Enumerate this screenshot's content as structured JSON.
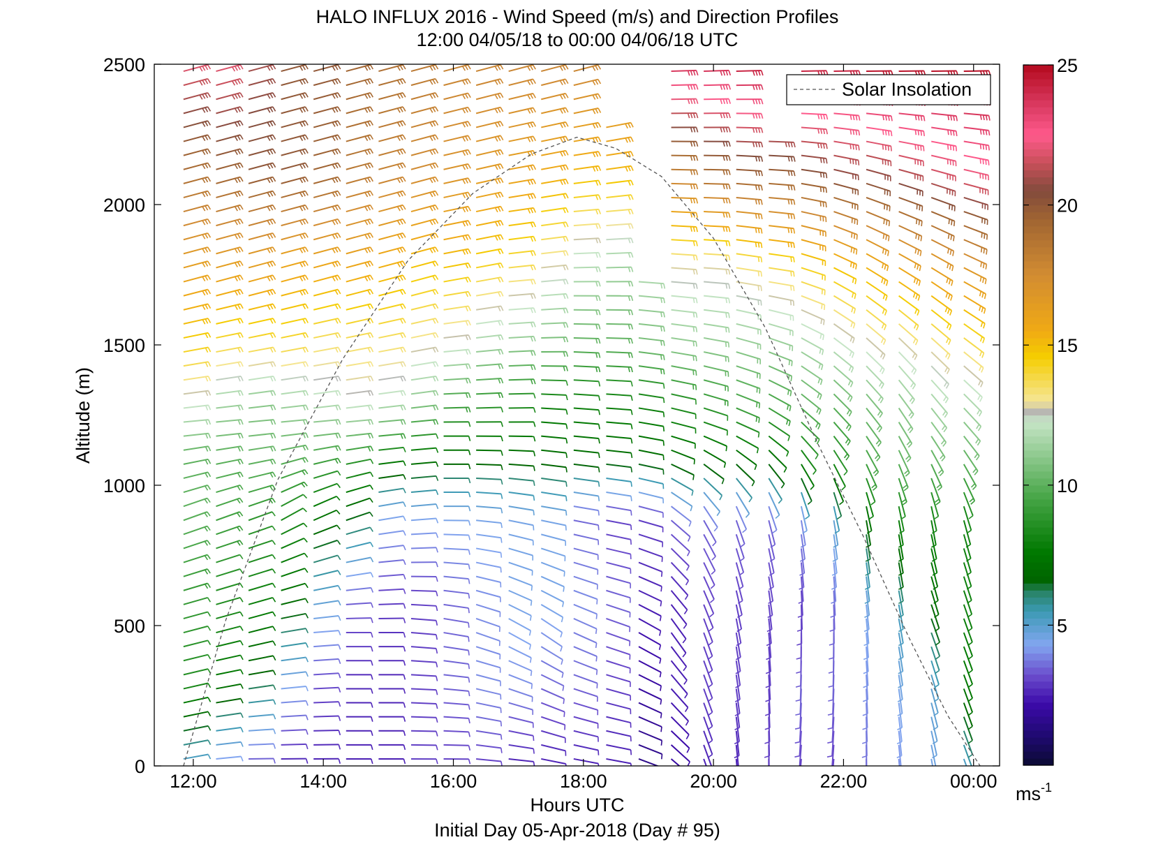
{
  "chart_data": {
    "type": "wind_barb_profile",
    "title": "HALO INFLUX 2016 - Wind Speed (m/s) and Direction Profiles",
    "subtitle": "12:00 04/05/18 to 00:00 04/06/18  UTC",
    "xlabel": "Hours UTC",
    "ylabel": "Altitude (m)",
    "footer": "Initial Day 05-Apr-2018 (Day # 95)",
    "xlim": [
      11.4,
      24.4
    ],
    "ylim": [
      0,
      2500
    ],
    "x_ticks": [
      {
        "value": 12,
        "label": "12:00"
      },
      {
        "value": 14,
        "label": "14:00"
      },
      {
        "value": 16,
        "label": "16:00"
      },
      {
        "value": 18,
        "label": "18:00"
      },
      {
        "value": 20,
        "label": "20:00"
      },
      {
        "value": 22,
        "label": "22:00"
      },
      {
        "value": 24,
        "label": "00:00"
      }
    ],
    "y_ticks": [
      {
        "value": 0,
        "label": "0"
      },
      {
        "value": 500,
        "label": "500"
      },
      {
        "value": 1000,
        "label": "1000"
      },
      {
        "value": 1500,
        "label": "1500"
      },
      {
        "value": 2000,
        "label": "2000"
      },
      {
        "value": 2500,
        "label": "2500"
      }
    ],
    "legend": {
      "entries": [
        {
          "label": "Solar Insolation",
          "style": "dashed"
        }
      ],
      "placement": "top-right"
    },
    "solar_insolation": {
      "x": [
        11.85,
        12.5,
        13.3,
        14.3,
        15.3,
        16.3,
        17.2,
        17.9,
        18.5,
        19.2,
        20.0,
        20.8,
        21.6,
        22.3,
        23.0,
        23.6,
        24.1
      ],
      "y": [
        0,
        520,
        1020,
        1450,
        1800,
        2040,
        2180,
        2240,
        2200,
        2100,
        1880,
        1560,
        1150,
        820,
        460,
        180,
        0
      ]
    },
    "colorbar": {
      "label": "ms",
      "label_exponent": "-1",
      "range": [
        0,
        25
      ],
      "ticks": [
        {
          "value": 5,
          "label": "5"
        },
        {
          "value": 10,
          "label": "10"
        },
        {
          "value": 15,
          "label": "15"
        },
        {
          "value": 20,
          "label": "20"
        },
        {
          "value": 25,
          "label": "25"
        }
      ],
      "stops": [
        {
          "value": 0,
          "color": "#0a0a32"
        },
        {
          "value": 1,
          "color": "#1e0a6e"
        },
        {
          "value": 2.2,
          "color": "#3c0aaa"
        },
        {
          "value": 3.2,
          "color": "#6a4ccc"
        },
        {
          "value": 4.3,
          "color": "#82a6f0"
        },
        {
          "value": 5.5,
          "color": "#3c9ab4"
        },
        {
          "value": 6.2,
          "color": "#288264"
        },
        {
          "value": 6.6,
          "color": "#006400"
        },
        {
          "value": 7.6,
          "color": "#007800"
        },
        {
          "value": 9.5,
          "color": "#44a444"
        },
        {
          "value": 11,
          "color": "#8cc88c"
        },
        {
          "value": 12.3,
          "color": "#c8e6c8"
        },
        {
          "value": 12.6,
          "color": "#b4b4b4"
        },
        {
          "value": 13.0,
          "color": "#f5e696"
        },
        {
          "value": 14.6,
          "color": "#f5cd00"
        },
        {
          "value": 15.5,
          "color": "#f0aa14"
        },
        {
          "value": 17.5,
          "color": "#d28c32"
        },
        {
          "value": 19.5,
          "color": "#a06432"
        },
        {
          "value": 20.5,
          "color": "#824b3c"
        },
        {
          "value": 21.5,
          "color": "#c8505a"
        },
        {
          "value": 22.5,
          "color": "#ff5a8c"
        },
        {
          "value": 23.5,
          "color": "#dc3c64"
        },
        {
          "value": 25,
          "color": "#b40a1e"
        }
      ]
    },
    "profiles": {
      "times_utc": [
        11.85,
        12.35,
        12.85,
        13.35,
        13.85,
        14.35,
        14.85,
        15.35,
        15.85,
        16.35,
        16.85,
        17.35,
        17.85,
        18.35,
        18.85,
        19.35,
        19.85,
        20.35,
        20.85,
        21.35,
        21.85,
        22.35,
        22.85,
        23.35,
        23.85
      ],
      "speed_profile_nodes": [
        {
          "alt": 0,
          "speeds": [
            5,
            4,
            3.2,
            2.5,
            2.5,
            2.5,
            2.5,
            3,
            3,
            3,
            2.5,
            2.5,
            2.5,
            2.5,
            1.5,
            2,
            2.5,
            2.5,
            3,
            3,
            3,
            3.5,
            4,
            4.5,
            5
          ]
        },
        {
          "alt": 300,
          "speeds": [
            8.5,
            7.5,
            6.5,
            4.5,
            3.2,
            2.6,
            2.6,
            3,
            3.5,
            4,
            4,
            3.5,
            3.5,
            3,
            2,
            2.5,
            3,
            3,
            3,
            3.5,
            3.5,
            4,
            4.5,
            5,
            7.5
          ]
        },
        {
          "alt": 600,
          "speeds": [
            9,
            8.5,
            8,
            7.2,
            5,
            3.5,
            3,
            3,
            3.5,
            4,
            4.5,
            4.5,
            4,
            3.5,
            2.5,
            2.5,
            3,
            3,
            3,
            3,
            3.5,
            4.5,
            5.5,
            7,
            8
          ]
        },
        {
          "alt": 900,
          "speeds": [
            10,
            9.5,
            9,
            8.5,
            7.5,
            6.8,
            4.5,
            4.5,
            4.5,
            4.5,
            4.5,
            4.5,
            3.5,
            3,
            3,
            3.5,
            3.5,
            3.5,
            3.5,
            4,
            5,
            7,
            8,
            8,
            8
          ]
        },
        {
          "alt": 1100,
          "speeds": [
            10,
            10,
            10.2,
            10,
            9.5,
            9,
            8,
            7.5,
            7,
            7,
            7,
            7,
            7,
            7,
            7,
            7,
            7,
            7,
            7,
            8,
            8.5,
            9.5,
            10,
            10,
            10
          ]
        },
        {
          "alt": 1300,
          "speeds": [
            12.5,
            11.5,
            11,
            11.5,
            12,
            12.5,
            12,
            11,
            9.5,
            9,
            8.5,
            8,
            8,
            8,
            8,
            8.5,
            9,
            9.5,
            9.5,
            10,
            10,
            10.5,
            11,
            11.5,
            11.5
          ]
        },
        {
          "alt": 1500,
          "speeds": [
            14.5,
            14,
            14,
            14,
            13.5,
            13.5,
            13.5,
            13,
            12.5,
            11.5,
            11,
            10.5,
            10,
            10,
            10.5,
            11,
            11,
            11,
            11,
            11.5,
            12,
            12.5,
            12.5,
            13,
            13.5
          ]
        },
        {
          "alt": 1800,
          "speeds": [
            16.5,
            16.5,
            16.5,
            16,
            16,
            16,
            15.5,
            15,
            15,
            14.5,
            14,
            13,
            12,
            11.5,
            12,
            13,
            13,
            13.5,
            14,
            14.5,
            15,
            15.5,
            16,
            16.5,
            17
          ]
        },
        {
          "alt": 2100,
          "speeds": [
            19,
            19.5,
            20,
            20,
            19.5,
            18.5,
            18,
            17.5,
            17,
            16.5,
            16,
            15.5,
            15,
            15,
            15,
            18,
            19,
            19.5,
            19.5,
            20,
            20.5,
            20.5,
            21,
            21.5,
            22
          ]
        },
        {
          "alt": 2500,
          "speeds": [
            22,
            22,
            21,
            20,
            20,
            19.5,
            19,
            18.5,
            18,
            18,
            18,
            18,
            18,
            18,
            18,
            24,
            24,
            24.5,
            24.5,
            24.5,
            24.5,
            25,
            25,
            25,
            25
          ]
        }
      ],
      "direction_profile_nodes": [
        {
          "alt": 0,
          "dirs": [
            80,
            85,
            90,
            90,
            90,
            90,
            90,
            90,
            90,
            95,
            95,
            100,
            100,
            100,
            110,
            130,
            160,
            175,
            180,
            185,
            185,
            180,
            175,
            170,
            160
          ]
        },
        {
          "alt": 500,
          "dirs": [
            75,
            75,
            75,
            80,
            85,
            90,
            90,
            95,
            100,
            110,
            120,
            125,
            115,
            110,
            120,
            145,
            160,
            170,
            175,
            180,
            180,
            175,
            170,
            160,
            160
          ]
        },
        {
          "alt": 900,
          "dirs": [
            70,
            70,
            70,
            60,
            65,
            70,
            80,
            85,
            90,
            95,
            100,
            100,
            100,
            100,
            105,
            130,
            150,
            160,
            165,
            170,
            170,
            170,
            170,
            170,
            165
          ]
        },
        {
          "alt": 1200,
          "dirs": [
            85,
            85,
            85,
            85,
            85,
            85,
            85,
            85,
            90,
            90,
            90,
            95,
            95,
            95,
            100,
            105,
            110,
            115,
            125,
            135,
            140,
            145,
            150,
            145,
            140
          ]
        },
        {
          "alt": 1700,
          "dirs": [
            75,
            75,
            75,
            75,
            75,
            75,
            75,
            75,
            80,
            80,
            85,
            85,
            90,
            90,
            95,
            95,
            95,
            100,
            100,
            110,
            120,
            125,
            125,
            125,
            120
          ]
        },
        {
          "alt": 2500,
          "dirs": [
            75,
            75,
            75,
            75,
            75,
            75,
            75,
            75,
            75,
            75,
            75,
            75,
            75,
            75,
            75,
            88,
            88,
            88,
            88,
            88,
            88,
            88,
            88,
            88,
            88
          ]
        }
      ],
      "altitude_step_m": 50,
      "profile_tops_m": [
        2500,
        2500,
        2500,
        2500,
        2500,
        2500,
        2500,
        2500,
        2500,
        2500,
        2500,
        2500,
        2500,
        2280,
        2150,
        2500,
        2500,
        2500,
        2500,
        2500,
        2500,
        2500,
        2500,
        2500,
        2500
      ],
      "data_gaps": [
        {
          "times": [
            18.85
          ],
          "from_alt": 1750,
          "to_alt": 2150
        },
        {
          "times": [
            20.85
          ],
          "from_alt": 2250,
          "to_alt": 2500
        }
      ]
    }
  }
}
